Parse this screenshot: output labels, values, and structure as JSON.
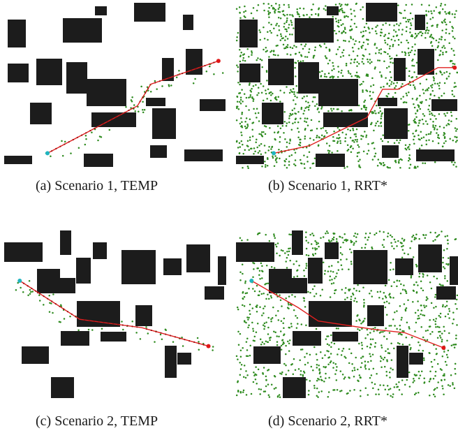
{
  "figure": {
    "colors": {
      "obstacle": "#1c1c1c",
      "sample": "#2e8b1f",
      "path": "#e02020",
      "start": "#20b5c0",
      "goal": "#e01818",
      "waypoint": "#a01010"
    },
    "panels": [
      {
        "id": "a",
        "caption": "(a) Scenario 1, TEMP",
        "method": "TEMP",
        "scenario": 1,
        "samples": {
          "count": 55,
          "region": "corridor"
        },
        "path": [
          [
            0.195,
            0.905
          ],
          [
            0.6,
            0.62
          ],
          [
            0.66,
            0.49
          ],
          [
            0.965,
            0.35
          ]
        ],
        "waypoints": true
      },
      {
        "id": "b",
        "caption": "(b) Scenario 1, RRT*",
        "method": "RRT*",
        "scenario": 1,
        "samples": {
          "count": 1300,
          "region": "full"
        },
        "path": [
          [
            0.17,
            0.905
          ],
          [
            0.33,
            0.86
          ],
          [
            0.59,
            0.69
          ],
          [
            0.66,
            0.52
          ],
          [
            0.73,
            0.52
          ],
          [
            0.91,
            0.39
          ],
          [
            0.985,
            0.39
          ]
        ],
        "waypoints": false
      },
      {
        "id": "c",
        "caption": "(c) Scenario 2, TEMP",
        "method": "TEMP",
        "scenario": 2,
        "samples": {
          "count": 55,
          "region": "corridor"
        },
        "path": [
          [
            0.07,
            0.3
          ],
          [
            0.34,
            0.53
          ],
          [
            0.62,
            0.58
          ],
          [
            0.92,
            0.69
          ]
        ],
        "waypoints": true
      },
      {
        "id": "d",
        "caption": "(d) Scenario 2, RRT*",
        "method": "RRT*",
        "scenario": 2,
        "samples": {
          "count": 1000,
          "region": "full"
        },
        "path": [
          [
            0.07,
            0.3
          ],
          [
            0.28,
            0.46
          ],
          [
            0.37,
            0.54
          ],
          [
            0.62,
            0.59
          ],
          [
            0.76,
            0.61
          ],
          [
            0.935,
            0.7
          ]
        ],
        "waypoints": false
      }
    ]
  }
}
